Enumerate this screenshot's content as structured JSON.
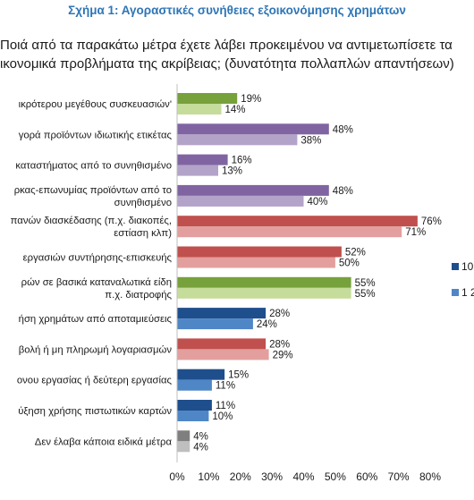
{
  "figure_title": "Σχήμα 1: Αγοραστικές συνήθειες εξοικονόμησης χρημάτων",
  "question": {
    "line1": "Ποιά από τα παρακάτω μέτρα έχετε λάβει προκειμένου να αντιμετωπίσετε τα",
    "line2": "ικονομικά προβλήματα της ακρίβειας; (δυνατότητα πολλαπλών απαντήσεων)"
  },
  "chart_data": {
    "type": "bar",
    "orientation": "horizontal",
    "xlim": [
      0,
      80
    ],
    "x_ticks": [
      "0%",
      "10%",
      "20%",
      "30%",
      "40%",
      "50%",
      "60%",
      "70%",
      "80%"
    ],
    "grid": false,
    "legend_position": "right",
    "categories": [
      [
        "ικρότερου μεγέθους συσκευασιών'"
      ],
      [
        "γορά προϊόντων ιδιωτικής ετικέτας"
      ],
      [
        "καταστήματος από το συνηθισμένο"
      ],
      [
        "ρκας-επωνυμίας προϊόντων από το",
        "συνηθισμένο"
      ],
      [
        "πανών διασκέδασης (π.χ. διακοπές,",
        "εστίαση κλπ)"
      ],
      [
        "εργασιών συντήρησης-επισκευής"
      ],
      [
        "ρών σε βασικά καταναλωτικά είδη",
        "π.χ. διατροφής"
      ],
      [
        "ήση χρημάτων από αποταμιεύσεις"
      ],
      [
        "βολή ή μη πληρωμή λογαριασμών"
      ],
      [
        "ονου εργασίας ή δεύτερη εργασίας"
      ],
      [
        "ύξηση χρήσης πιστωτικών καρτών"
      ],
      [
        "Δεν έλαβα κάποια ειδικά μέτρα"
      ]
    ],
    "series": [
      {
        "name": "10",
        "values": [
          19,
          48,
          16,
          48,
          76,
          52,
          55,
          28,
          28,
          15,
          11,
          4
        ]
      },
      {
        "name": "1 2",
        "values": [
          14,
          38,
          13,
          40,
          71,
          50,
          55,
          24,
          29,
          11,
          10,
          4
        ]
      }
    ],
    "bar_colors": [
      [
        "#76a13b",
        "#c5dc9b"
      ],
      [
        "#8064a2",
        "#b3a3c9"
      ],
      [
        "#8064a2",
        "#b3a3c9"
      ],
      [
        "#8064a2",
        "#b3a3c9"
      ],
      [
        "#c0504d",
        "#e39f9d"
      ],
      [
        "#c0504d",
        "#e39f9d"
      ],
      [
        "#76a13b",
        "#c5dc9b"
      ],
      [
        "#1f4e8c",
        "#4f86c6"
      ],
      [
        "#c0504d",
        "#e39f9d"
      ],
      [
        "#1f4e8c",
        "#4f86c6"
      ],
      [
        "#1f4e8c",
        "#4f86c6"
      ],
      [
        "#7f7f7f",
        "#bfbfbf"
      ]
    ],
    "legend_colors": [
      "#1f4e8c",
      "#4f86c6"
    ]
  }
}
